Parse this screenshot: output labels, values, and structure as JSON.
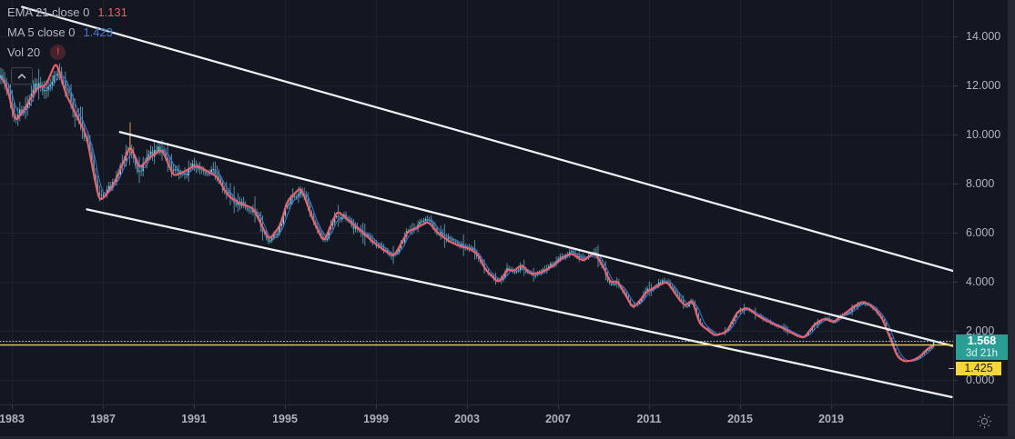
{
  "app": {
    "title": "TradingView chart",
    "background": "#131722"
  },
  "legend": {
    "rows": [
      {
        "label": "EMA 21 close 0",
        "value": "1.131",
        "value_color": "#e85f68"
      },
      {
        "label": "MA 5 close 0",
        "value": "1.423",
        "value_color": "#4577cf"
      },
      {
        "label": "Vol 20",
        "error_badge": "!"
      }
    ]
  },
  "badges": {
    "last_price": "1.568",
    "countdown": "3d 21h",
    "alert_price": "1.425"
  },
  "price_axis": {
    "ticks": [
      {
        "value": 14,
        "label": "14.000"
      },
      {
        "value": 12,
        "label": "12.000"
      },
      {
        "value": 10,
        "label": "10.000"
      },
      {
        "value": 8,
        "label": "8.000"
      },
      {
        "value": 6,
        "label": "6.000"
      },
      {
        "value": 4,
        "label": "4.000"
      },
      {
        "value": 2,
        "label": "2.000"
      },
      {
        "value": 0,
        "label": "0.000"
      }
    ]
  },
  "time_axis": {
    "ticks": [
      {
        "year": 1983,
        "label": "1983"
      },
      {
        "year": 1987,
        "label": "1987"
      },
      {
        "year": 1991,
        "label": "1991"
      },
      {
        "year": 1995,
        "label": "1995"
      },
      {
        "year": 1999,
        "label": "1999"
      },
      {
        "year": 2003,
        "label": "2003"
      },
      {
        "year": 2007,
        "label": "2007"
      },
      {
        "year": 2011,
        "label": "2011"
      },
      {
        "year": 2015,
        "label": "2015"
      },
      {
        "year": 2019,
        "label": "2019"
      }
    ],
    "grid_years": [
      1983,
      1987,
      1991,
      1995,
      1999,
      2003,
      2007,
      2011,
      2015,
      2019,
      2023
    ]
  },
  "chart_data": {
    "type": "candlestick",
    "x_domain": [
      1982.48,
      2024.36
    ],
    "y_domain": [
      -1.0,
      15.48
    ],
    "grid": true,
    "last_close": 1.568,
    "candle_interval_years": 0.0833,
    "colors": {
      "background": "#131722",
      "grid": "#1e222d",
      "candle_up": "#6fd1e3",
      "candle_down": "#4e9fb8",
      "wick": "rgba(130,202,222,0.8)",
      "ema21": "#ee5f6f",
      "ma5": "#4576cd",
      "trendline": "#f0f2f5",
      "alert_line": "#e7d04a",
      "current_price_line": "#cfd3dc",
      "badge_teal": "#2a9e95",
      "badge_yellow": "#f6d43c",
      "spike": "#d0813f"
    },
    "indicators": [
      {
        "name": "EMA",
        "length": 21,
        "source": "close",
        "offset": 0,
        "value": 1.131
      },
      {
        "name": "MA",
        "length": 5,
        "source": "close",
        "offset": 0,
        "value": 1.423
      },
      {
        "name": "Vol",
        "length": 20,
        "error": true
      }
    ],
    "series": [
      {
        "name": "EMA 21 trend anchors",
        "points": [
          [
            1982.52,
            12.4
          ],
          [
            1982.8,
            11.9
          ],
          [
            1983.15,
            10.5
          ],
          [
            1983.6,
            11.1
          ],
          [
            1984.1,
            11.9
          ],
          [
            1984.5,
            12.0
          ],
          [
            1984.95,
            13.0
          ],
          [
            1985.35,
            11.7
          ],
          [
            1985.8,
            10.85
          ],
          [
            1986.3,
            9.9
          ],
          [
            1986.55,
            8.6
          ],
          [
            1986.85,
            7.25
          ],
          [
            1987.2,
            7.6
          ],
          [
            1987.55,
            8.1
          ],
          [
            1988.0,
            9.1
          ],
          [
            1988.2,
            9.6
          ],
          [
            1988.6,
            8.6
          ],
          [
            1989.1,
            9.1
          ],
          [
            1989.6,
            9.4
          ],
          [
            1990.1,
            8.3
          ],
          [
            1990.6,
            8.5
          ],
          [
            1991.1,
            8.75
          ],
          [
            1991.6,
            8.5
          ],
          [
            1992.0,
            8.3
          ],
          [
            1992.5,
            7.5
          ],
          [
            1993.0,
            7.2
          ],
          [
            1993.6,
            7.0
          ],
          [
            1994.3,
            5.7
          ],
          [
            1994.8,
            6.3
          ],
          [
            1995.1,
            7.3
          ],
          [
            1995.7,
            7.85
          ],
          [
            1996.2,
            6.6
          ],
          [
            1996.7,
            5.6
          ],
          [
            1997.3,
            6.9
          ],
          [
            1997.8,
            6.5
          ],
          [
            1998.3,
            6.1
          ],
          [
            1998.9,
            5.6
          ],
          [
            1999.4,
            5.25
          ],
          [
            1999.8,
            5.05
          ],
          [
            2000.4,
            6.05
          ],
          [
            2000.8,
            6.2
          ],
          [
            2001.3,
            6.45
          ],
          [
            2001.7,
            6.0
          ],
          [
            2002.3,
            5.6
          ],
          [
            2002.7,
            5.45
          ],
          [
            2003.1,
            5.35
          ],
          [
            2003.5,
            5.1
          ],
          [
            2003.8,
            4.5
          ],
          [
            2004.4,
            3.95
          ],
          [
            2004.8,
            4.55
          ],
          [
            2005.0,
            4.4
          ],
          [
            2005.4,
            4.7
          ],
          [
            2005.8,
            4.3
          ],
          [
            2006.3,
            4.4
          ],
          [
            2006.7,
            4.6
          ],
          [
            2007.3,
            5.05
          ],
          [
            2007.6,
            5.15
          ],
          [
            2008.1,
            4.85
          ],
          [
            2008.6,
            5.2
          ],
          [
            2009.0,
            4.6
          ],
          [
            2009.3,
            3.95
          ],
          [
            2009.6,
            4.05
          ],
          [
            2010.0,
            3.4
          ],
          [
            2010.3,
            2.9
          ],
          [
            2010.9,
            3.6
          ],
          [
            2011.4,
            3.85
          ],
          [
            2011.8,
            4.0
          ],
          [
            2012.3,
            3.3
          ],
          [
            2012.6,
            3.0
          ],
          [
            2012.9,
            3.3
          ],
          [
            2013.2,
            2.3
          ],
          [
            2013.9,
            1.8
          ],
          [
            2014.4,
            1.95
          ],
          [
            2014.9,
            2.8
          ],
          [
            2015.3,
            2.95
          ],
          [
            2015.8,
            2.6
          ],
          [
            2016.3,
            2.35
          ],
          [
            2016.9,
            2.1
          ],
          [
            2017.4,
            1.85
          ],
          [
            2017.8,
            1.7
          ],
          [
            2018.3,
            2.3
          ],
          [
            2018.7,
            2.5
          ],
          [
            2019.1,
            2.35
          ],
          [
            2019.6,
            2.7
          ],
          [
            2020.0,
            3.0
          ],
          [
            2020.4,
            3.2
          ],
          [
            2020.8,
            3.0
          ],
          [
            2021.2,
            2.6
          ],
          [
            2021.6,
            1.7
          ],
          [
            2021.9,
            0.95
          ],
          [
            2022.2,
            0.75
          ],
          [
            2022.6,
            0.8
          ],
          [
            2022.9,
            0.95
          ],
          [
            2023.2,
            1.25
          ],
          [
            2023.55,
            1.45
          ]
        ]
      }
    ],
    "trendlines": [
      {
        "name": "channel-top",
        "from": [
          1983.45,
          15.2
        ],
        "to": [
          2024.9,
          4.3
        ]
      },
      {
        "name": "channel-middle",
        "from": [
          1987.75,
          10.1
        ],
        "to": [
          2024.5,
          1.35
        ]
      },
      {
        "name": "channel-bottom",
        "from": [
          1986.3,
          6.95
        ],
        "to": [
          2024.3,
          -0.7
        ]
      }
    ],
    "price_lines": [
      {
        "name": "current-price",
        "value": 1.568,
        "style": "dotted"
      },
      {
        "name": "alert-level",
        "value": 1.425,
        "style": "solid-yellow"
      }
    ],
    "spike_marker": {
      "year": 1988.2,
      "from": 9.2,
      "to": 10.5
    }
  }
}
